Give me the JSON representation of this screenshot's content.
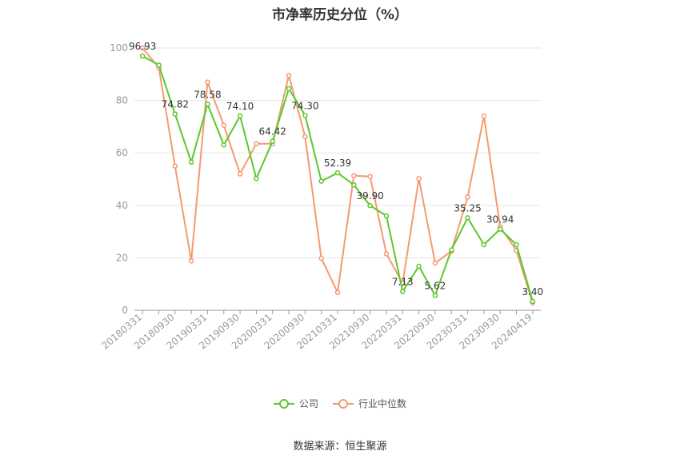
{
  "chart_data": {
    "type": "line",
    "title": "市净率历史分位（%）",
    "x": [
      "20180331",
      "20180630",
      "20180930",
      "20181231",
      "20190331",
      "20190630",
      "20190930",
      "20191231",
      "20200331",
      "20200630",
      "20200930",
      "20201231",
      "20210331",
      "20210630",
      "20210930",
      "20211231",
      "20220331",
      "20220630",
      "20220930",
      "20221231",
      "20230331",
      "20230630",
      "20230930",
      "20231231",
      "20240419"
    ],
    "x_tick_labels": [
      "20180331",
      "20180930",
      "20190331",
      "20190930",
      "20200331",
      "20200930",
      "20210331",
      "20210930",
      "20220331",
      "20220930",
      "20230331",
      "20230930",
      "20240419"
    ],
    "ylim": [
      0,
      100
    ],
    "y_ticks": [
      0,
      20,
      40,
      60,
      80,
      100
    ],
    "grid": true,
    "legend_position": "bottom",
    "series": [
      {
        "name": "公司",
        "color": "#5cc72e",
        "values": [
          96.93,
          93.5,
          74.82,
          56.5,
          78.58,
          63.0,
          74.1,
          50.2,
          64.42,
          84.5,
          74.3,
          49.2,
          52.39,
          47.8,
          39.9,
          36.0,
          7.13,
          16.8,
          5.62,
          23.0,
          35.25,
          25.0,
          30.94,
          25.0,
          3.4
        ],
        "labels": {
          "0": "96.93",
          "2": "74.82",
          "4": "78.58",
          "6": "74.10",
          "8": "64.42",
          "10": "74.30",
          "12": "52.39",
          "14": "39.90",
          "16": "7.13",
          "18": "5.62",
          "20": "35.25",
          "22": "30.94",
          "24": "3.40"
        }
      },
      {
        "name": "行业中位数",
        "color": "#f59a6e",
        "values": [
          100.0,
          92.5,
          55.0,
          18.8,
          87.0,
          70.5,
          52.0,
          63.5,
          63.5,
          89.5,
          66.2,
          19.8,
          6.8,
          51.3,
          51.0,
          21.5,
          10.3,
          50.2,
          18.0,
          22.5,
          43.2,
          74.0,
          31.8,
          22.8,
          2.8
        ]
      }
    ]
  },
  "source": "数据来源：恒生聚源"
}
